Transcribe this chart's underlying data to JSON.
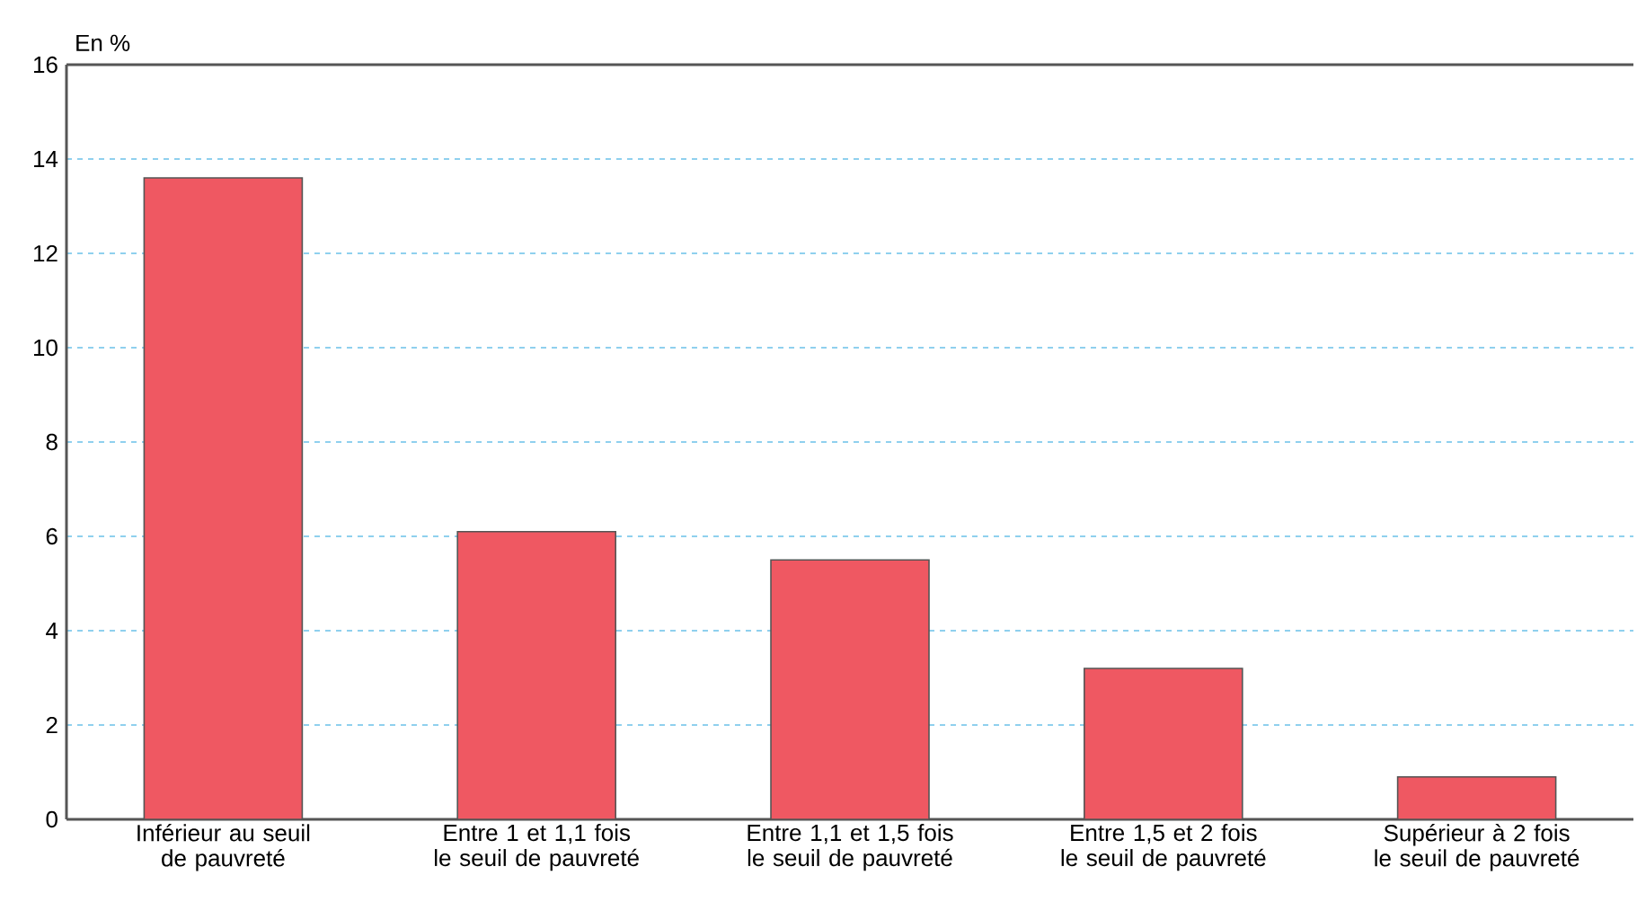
{
  "chart_data": {
    "type": "bar",
    "ylabel": "En %",
    "categories": [
      "Inférieur au seuil de pauvreté",
      "Entre 1 et 1,1 fois le seuil de pauvreté",
      "Entre 1,1 et 1,5 fois le seuil de pauvreté",
      "Entre 1,5 et 2 fois le seuil de pauvreté",
      "Supérieur à 2 fois le seuil de pauvreté"
    ],
    "values": [
      13.6,
      6.1,
      5.5,
      3.2,
      0.9
    ],
    "color": "#ef5862",
    "ylim": [
      0,
      16
    ],
    "yticks": [
      0,
      2,
      4,
      6,
      8,
      10,
      12,
      14,
      16
    ],
    "grid": "y"
  }
}
